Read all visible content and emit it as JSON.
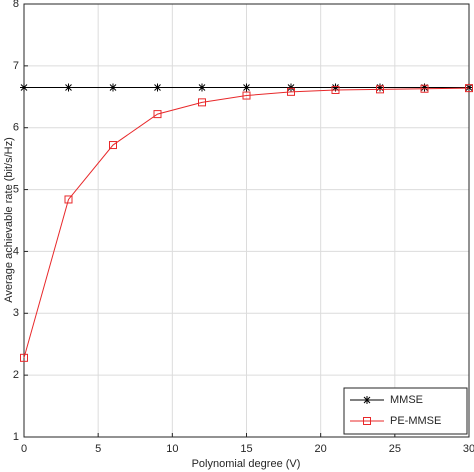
{
  "chart_data": {
    "type": "line",
    "xlabel": "Polynomial degree (V)",
    "ylabel": "Average achievable rate (bit/s/Hz)",
    "x": [
      0,
      3,
      6,
      9,
      12,
      15,
      18,
      21,
      24,
      27,
      30
    ],
    "series": [
      {
        "name": "MMSE",
        "color": "#000000",
        "marker": "star",
        "values": [
          6.65,
          6.65,
          6.65,
          6.65,
          6.65,
          6.65,
          6.65,
          6.65,
          6.65,
          6.65,
          6.65
        ]
      },
      {
        "name": "PE-MMSE",
        "color": "#e8282a",
        "marker": "square",
        "values": [
          2.28,
          4.84,
          5.72,
          6.22,
          6.41,
          6.52,
          6.58,
          6.61,
          6.62,
          6.63,
          6.64
        ]
      }
    ],
    "xlim": [
      0,
      30
    ],
    "xticks": [
      0,
      5,
      10,
      15,
      20,
      25,
      30
    ],
    "ylim": [
      1,
      8
    ],
    "yticks": [
      1,
      2,
      3,
      4,
      5,
      6,
      7,
      8
    ],
    "grid": true,
    "legend": "lower right"
  }
}
